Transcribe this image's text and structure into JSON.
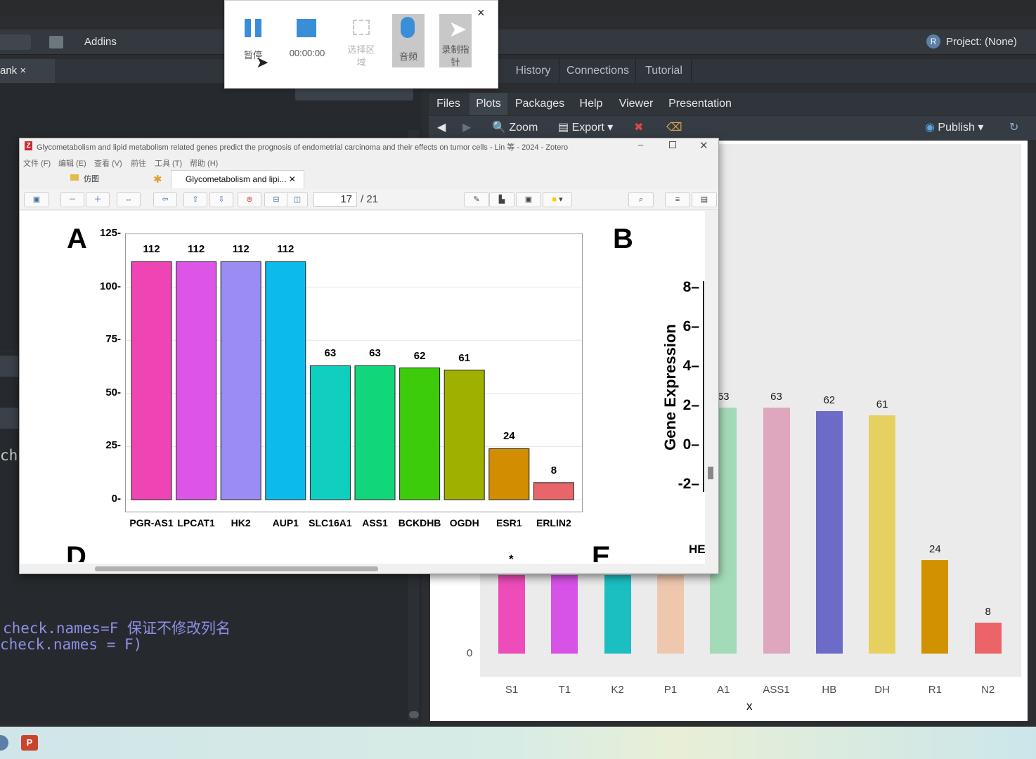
{
  "rstudio": {
    "toolbar": {
      "addins": "Addins",
      "project": "Project: (None)"
    },
    "left_tab": "ank",
    "console": {
      "ch": "ch",
      "line1": "check.names=F 保证不修改列名",
      "line2": "check.names = F)"
    },
    "right_tabs": [
      "History",
      "Connections",
      "Tutorial"
    ],
    "lower_tabs": [
      "Files",
      "Plots",
      "Packages",
      "Help",
      "Viewer",
      "Presentation"
    ],
    "plot_toolbar": {
      "zoom": "Zoom",
      "export": "Export",
      "publish": "Publish"
    }
  },
  "recorder": {
    "pause_label": "暂停",
    "timer": "00:00:00",
    "select_area_l1": "选择区",
    "select_area_l2": "域",
    "audio": "音频",
    "record_pointer_l1": "录制指",
    "record_pointer_l2": "针",
    "close": "×"
  },
  "zotero": {
    "title": "Glycometabolism and lipid metabolism related genes predict the prognosis of endometrial carcinoma and their effects on tumor cells - Lin 等 - 2024 - Zotero",
    "menu": [
      "文件 (F)",
      "编辑 (E)",
      "查看 (V)",
      "前往",
      "工具 (T)",
      "帮助 (H)"
    ],
    "library_tab": "仿图",
    "doc_tab": "Glycometabolism and lipi...",
    "page_current": "17",
    "page_total": "/ 21",
    "panel_a": "A",
    "panel_b": "B",
    "panel_d": "D",
    "panel_e": "E",
    "b_ylabel": "Gene Expression",
    "fragment_he": "HE",
    "fragment_star": "*"
  },
  "chart_data": [
    {
      "type": "bar",
      "title": "",
      "categories": [
        "PGR-AS1",
        "LPCAT1",
        "HK2",
        "AUP1",
        "SLC16A1",
        "ASS1",
        "BCKDHB",
        "OGDH",
        "ESR1",
        "ERLIN2"
      ],
      "values": [
        112,
        112,
        112,
        112,
        63,
        63,
        62,
        61,
        24,
        8
      ],
      "colors": [
        "#ee44b4",
        "#dc55e6",
        "#9a8cf2",
        "#0cbbeb",
        "#0fcfc0",
        "#12d67a",
        "#3dcc0c",
        "#a0b000",
        "#d28e00",
        "#e8656b"
      ],
      "yticks": [
        0,
        25,
        50,
        75,
        100,
        125
      ],
      "ylim": [
        0,
        125
      ],
      "grid": true,
      "xlabel": "",
      "ylabel": ""
    },
    {
      "type": "bar",
      "title": "",
      "categories": [
        "S1",
        "T1",
        "K2",
        "P1",
        "A1",
        "ASS1",
        "HB",
        "DH",
        "R1",
        "N2"
      ],
      "values": [
        null,
        null,
        null,
        null,
        63,
        63,
        62,
        61,
        24,
        8
      ],
      "value_labels": [
        "",
        "",
        "",
        "",
        "63",
        "63",
        "62",
        "61",
        "24",
        "8"
      ],
      "colors": [
        "#ee4cb8",
        "#d752e6",
        "#1bbfc1",
        "#eec7ad",
        "#a3dab8",
        "#dea7bd",
        "#6c6bc8",
        "#e6d060",
        "#d29200",
        "#ea6468"
      ],
      "yticks": [
        0
      ],
      "xlabel": "x",
      "ylabel": ""
    },
    {
      "type": "bar",
      "title": "",
      "ylabel": "Gene Expression",
      "yticks": [
        -2,
        0,
        2,
        4,
        6,
        8
      ]
    }
  ]
}
